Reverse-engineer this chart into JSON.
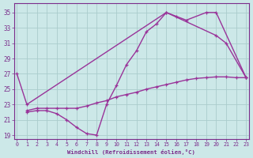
{
  "lines": [
    {
      "x": [
        0,
        1,
        15,
        16,
        17,
        19,
        20,
        23
      ],
      "y": [
        27,
        23,
        35,
        34.5,
        34,
        35,
        35,
        26.5
      ],
      "color": "#993399",
      "linewidth": 1.0,
      "marker": "+"
    },
    {
      "x": [
        1,
        2,
        3,
        4,
        5,
        6,
        7,
        8,
        9,
        10,
        11,
        12,
        13,
        14,
        15,
        20,
        21,
        23
      ],
      "y": [
        22,
        22.2,
        22.2,
        21.8,
        21.0,
        20.0,
        19.2,
        19.0,
        23.0,
        25.5,
        28.2,
        30.0,
        32.5,
        33.5,
        35.0,
        32.0,
        31.0,
        26.5
      ],
      "color": "#993399",
      "linewidth": 1.0,
      "marker": "+"
    },
    {
      "x": [
        1,
        2,
        3,
        4,
        5,
        6,
        7,
        8,
        9,
        10,
        11,
        12,
        13,
        14,
        15,
        16,
        17,
        18,
        19,
        20,
        21,
        22,
        23
      ],
      "y": [
        22.2,
        22.5,
        22.5,
        22.5,
        22.5,
        22.5,
        22.8,
        23.2,
        23.5,
        24.0,
        24.3,
        24.6,
        25.0,
        25.3,
        25.6,
        25.9,
        26.2,
        26.4,
        26.5,
        26.6,
        26.6,
        26.5,
        26.5
      ],
      "color": "#993399",
      "linewidth": 1.0,
      "marker": "+"
    }
  ],
  "xlabel": "Windchill (Refroidissement éolien,°C)",
  "xlim": [
    -0.3,
    23.3
  ],
  "ylim": [
    18.5,
    36.2
  ],
  "xticks": [
    0,
    1,
    2,
    3,
    4,
    5,
    6,
    7,
    8,
    9,
    10,
    11,
    12,
    13,
    14,
    15,
    16,
    17,
    18,
    19,
    20,
    21,
    22,
    23
  ],
  "yticks": [
    19,
    21,
    23,
    25,
    27,
    29,
    31,
    33,
    35
  ],
  "bg_color": "#cce8e8",
  "grid_color": "#aacccc",
  "text_color": "#7b2d8b",
  "axis_color": "#7b2d8b",
  "line_color": "#993399"
}
